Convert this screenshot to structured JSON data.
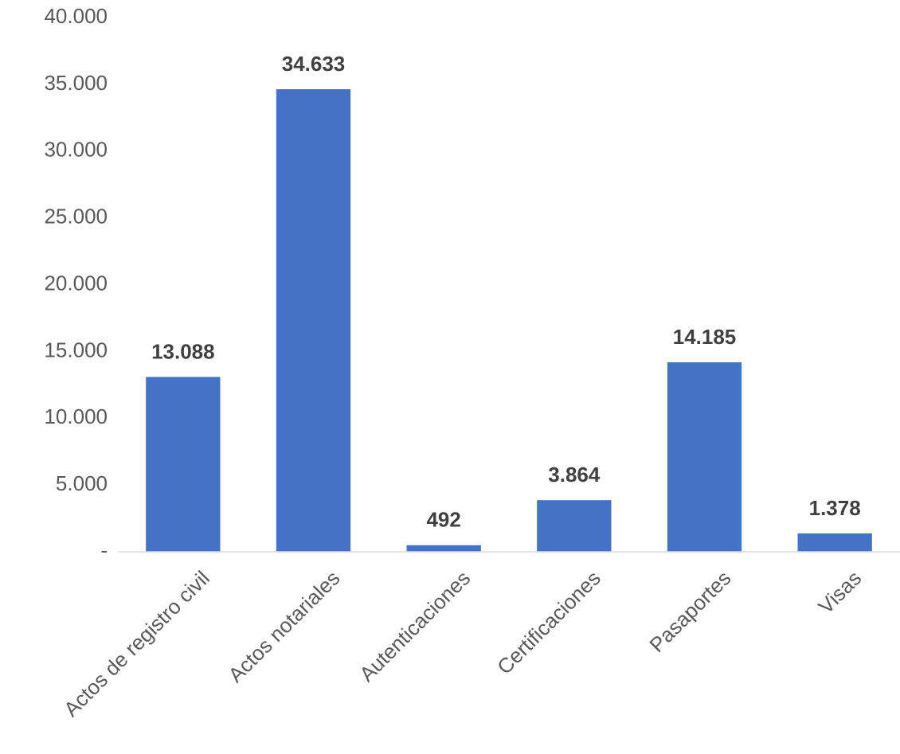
{
  "chart_data": {
    "type": "bar",
    "categories": [
      "Actos de registro civil",
      "Actos notariales",
      "Autenticaciones",
      "Certificaciones",
      "Pasaportes",
      "Visas"
    ],
    "values": [
      13088,
      34633,
      492,
      3864,
      14185,
      1378
    ],
    "value_labels": [
      "13.088",
      "34.633",
      "492",
      "3.864",
      "14.185",
      "1.378"
    ],
    "color": "#4472c4",
    "ylim": [
      0,
      40000
    ],
    "yticks": [
      {
        "value": 0,
        "label": "-"
      },
      {
        "value": 5000,
        "label": "5.000"
      },
      {
        "value": 10000,
        "label": "10.000"
      },
      {
        "value": 15000,
        "label": "15.000"
      },
      {
        "value": 20000,
        "label": "20.000"
      },
      {
        "value": 25000,
        "label": "25.000"
      },
      {
        "value": 30000,
        "label": "30.000"
      },
      {
        "value": 35000,
        "label": "35.000"
      },
      {
        "value": 40000,
        "label": "40.000"
      }
    ],
    "grid": false
  }
}
